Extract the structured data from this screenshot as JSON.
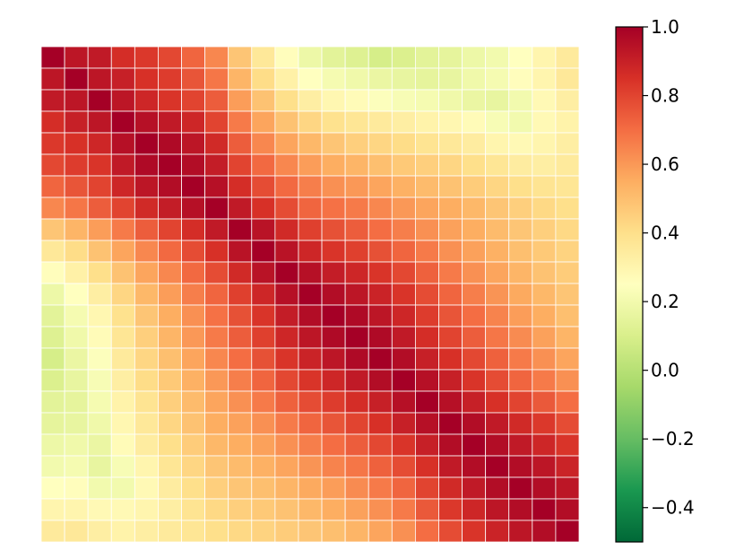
{
  "chart_data": {
    "type": "heatmap",
    "title": "",
    "xlabel": "",
    "ylabel": "",
    "x_tick_labels": [],
    "y_tick_labels": [],
    "rows": 23,
    "cols": 23,
    "cell_gridlines": true,
    "cell_gridline_color": "#ffffff",
    "colormap": "RdYlGn_r",
    "colormap_stops": [
      "#006837",
      "#1a9850",
      "#66bd63",
      "#a6d96a",
      "#d9ef8b",
      "#ffffbf",
      "#fee08b",
      "#fdae61",
      "#f46d43",
      "#d73027",
      "#a50026"
    ],
    "vmin": -0.5,
    "vmax": 1.0,
    "colorbar": {
      "placement": "right",
      "ticks": [
        {
          "value": 1.0,
          "label": "1.0"
        },
        {
          "value": 0.8,
          "label": "0.8"
        },
        {
          "value": 0.6,
          "label": "0.6"
        },
        {
          "value": 0.4,
          "label": "0.4"
        },
        {
          "value": 0.2,
          "label": "0.2"
        },
        {
          "value": 0.0,
          "label": "0.0"
        },
        {
          "value": -0.2,
          "label": "−0.2"
        },
        {
          "value": -0.4,
          "label": "−0.4"
        }
      ]
    },
    "values": [
      [
        1.0,
        0.93,
        0.92,
        0.86,
        0.83,
        0.79,
        0.72,
        0.64,
        0.48,
        0.36,
        0.26,
        0.18,
        0.14,
        0.12,
        0.09,
        0.11,
        0.14,
        0.15,
        0.18,
        0.2,
        0.25,
        0.3,
        0.35
      ],
      [
        0.93,
        1.0,
        0.93,
        0.9,
        0.85,
        0.82,
        0.76,
        0.68,
        0.53,
        0.41,
        0.32,
        0.25,
        0.21,
        0.19,
        0.17,
        0.16,
        0.15,
        0.16,
        0.19,
        0.21,
        0.26,
        0.3,
        0.36
      ],
      [
        0.92,
        0.93,
        1.0,
        0.93,
        0.88,
        0.84,
        0.8,
        0.74,
        0.59,
        0.49,
        0.4,
        0.33,
        0.29,
        0.27,
        0.24,
        0.22,
        0.21,
        0.19,
        0.17,
        0.16,
        0.2,
        0.28,
        0.33
      ],
      [
        0.86,
        0.9,
        0.93,
        1.0,
        0.95,
        0.92,
        0.88,
        0.8,
        0.67,
        0.57,
        0.49,
        0.43,
        0.39,
        0.37,
        0.35,
        0.33,
        0.31,
        0.29,
        0.27,
        0.22,
        0.2,
        0.28,
        0.31
      ],
      [
        0.83,
        0.85,
        0.88,
        0.95,
        1.0,
        0.97,
        0.93,
        0.87,
        0.74,
        0.64,
        0.57,
        0.52,
        0.48,
        0.45,
        0.43,
        0.41,
        0.38,
        0.36,
        0.34,
        0.3,
        0.28,
        0.3,
        0.33
      ],
      [
        0.79,
        0.82,
        0.84,
        0.92,
        0.97,
        1.0,
        0.96,
        0.91,
        0.8,
        0.71,
        0.64,
        0.59,
        0.55,
        0.53,
        0.5,
        0.47,
        0.45,
        0.43,
        0.4,
        0.37,
        0.34,
        0.33,
        0.35
      ],
      [
        0.72,
        0.76,
        0.8,
        0.88,
        0.93,
        0.96,
        1.0,
        0.95,
        0.86,
        0.78,
        0.71,
        0.66,
        0.62,
        0.6,
        0.57,
        0.54,
        0.51,
        0.49,
        0.46,
        0.43,
        0.4,
        0.38,
        0.37
      ],
      [
        0.64,
        0.68,
        0.74,
        0.8,
        0.87,
        0.91,
        0.95,
        1.0,
        0.92,
        0.85,
        0.78,
        0.72,
        0.69,
        0.67,
        0.64,
        0.6,
        0.57,
        0.55,
        0.52,
        0.48,
        0.45,
        0.42,
        0.4
      ],
      [
        0.48,
        0.53,
        0.59,
        0.67,
        0.74,
        0.8,
        0.86,
        0.92,
        1.0,
        0.94,
        0.87,
        0.81,
        0.77,
        0.74,
        0.7,
        0.66,
        0.62,
        0.58,
        0.55,
        0.51,
        0.48,
        0.45,
        0.42
      ],
      [
        0.36,
        0.41,
        0.49,
        0.57,
        0.64,
        0.71,
        0.78,
        0.85,
        0.94,
        1.0,
        0.94,
        0.88,
        0.84,
        0.81,
        0.77,
        0.72,
        0.67,
        0.62,
        0.58,
        0.54,
        0.5,
        0.47,
        0.44
      ],
      [
        0.26,
        0.32,
        0.4,
        0.49,
        0.57,
        0.64,
        0.71,
        0.78,
        0.87,
        0.94,
        1.0,
        0.95,
        0.91,
        0.88,
        0.84,
        0.79,
        0.73,
        0.67,
        0.62,
        0.57,
        0.53,
        0.49,
        0.46
      ],
      [
        0.18,
        0.25,
        0.33,
        0.43,
        0.52,
        0.59,
        0.66,
        0.72,
        0.81,
        0.88,
        0.95,
        1.0,
        0.96,
        0.93,
        0.89,
        0.84,
        0.78,
        0.72,
        0.66,
        0.61,
        0.56,
        0.52,
        0.48
      ],
      [
        0.14,
        0.21,
        0.29,
        0.39,
        0.48,
        0.55,
        0.62,
        0.69,
        0.77,
        0.84,
        0.91,
        0.96,
        1.0,
        0.97,
        0.93,
        0.88,
        0.82,
        0.76,
        0.7,
        0.65,
        0.59,
        0.55,
        0.5
      ],
      [
        0.12,
        0.19,
        0.27,
        0.37,
        0.45,
        0.53,
        0.6,
        0.67,
        0.74,
        0.81,
        0.88,
        0.93,
        0.97,
        1.0,
        0.97,
        0.92,
        0.86,
        0.8,
        0.74,
        0.68,
        0.63,
        0.58,
        0.53
      ],
      [
        0.09,
        0.17,
        0.24,
        0.35,
        0.43,
        0.5,
        0.57,
        0.64,
        0.7,
        0.77,
        0.84,
        0.89,
        0.93,
        0.97,
        1.0,
        0.96,
        0.9,
        0.85,
        0.79,
        0.73,
        0.67,
        0.62,
        0.57
      ],
      [
        0.11,
        0.16,
        0.22,
        0.33,
        0.41,
        0.47,
        0.54,
        0.6,
        0.66,
        0.72,
        0.79,
        0.84,
        0.88,
        0.92,
        0.96,
        1.0,
        0.95,
        0.9,
        0.84,
        0.78,
        0.72,
        0.67,
        0.62
      ],
      [
        0.14,
        0.15,
        0.21,
        0.31,
        0.38,
        0.45,
        0.51,
        0.57,
        0.62,
        0.67,
        0.73,
        0.78,
        0.82,
        0.86,
        0.9,
        0.95,
        1.0,
        0.95,
        0.9,
        0.85,
        0.8,
        0.75,
        0.7
      ],
      [
        0.15,
        0.16,
        0.19,
        0.29,
        0.36,
        0.43,
        0.49,
        0.55,
        0.58,
        0.62,
        0.67,
        0.72,
        0.76,
        0.8,
        0.85,
        0.9,
        0.95,
        1.0,
        0.96,
        0.92,
        0.87,
        0.83,
        0.78
      ],
      [
        0.18,
        0.19,
        0.17,
        0.27,
        0.34,
        0.4,
        0.46,
        0.52,
        0.55,
        0.58,
        0.62,
        0.66,
        0.7,
        0.74,
        0.79,
        0.84,
        0.9,
        0.96,
        1.0,
        0.96,
        0.92,
        0.88,
        0.84
      ],
      [
        0.2,
        0.21,
        0.16,
        0.22,
        0.3,
        0.37,
        0.43,
        0.48,
        0.51,
        0.54,
        0.57,
        0.61,
        0.65,
        0.68,
        0.73,
        0.78,
        0.85,
        0.92,
        0.96,
        1.0,
        0.96,
        0.93,
        0.89
      ],
      [
        0.25,
        0.26,
        0.2,
        0.2,
        0.28,
        0.34,
        0.4,
        0.45,
        0.48,
        0.5,
        0.53,
        0.56,
        0.59,
        0.63,
        0.67,
        0.72,
        0.8,
        0.87,
        0.92,
        0.96,
        1.0,
        0.96,
        0.93
      ],
      [
        0.3,
        0.3,
        0.28,
        0.28,
        0.3,
        0.33,
        0.38,
        0.42,
        0.45,
        0.47,
        0.49,
        0.52,
        0.55,
        0.58,
        0.62,
        0.67,
        0.75,
        0.83,
        0.88,
        0.93,
        0.96,
        1.0,
        0.96
      ],
      [
        0.35,
        0.36,
        0.33,
        0.31,
        0.33,
        0.35,
        0.37,
        0.4,
        0.42,
        0.44,
        0.46,
        0.48,
        0.5,
        0.53,
        0.57,
        0.62,
        0.7,
        0.78,
        0.84,
        0.89,
        0.93,
        0.96,
        1.0
      ]
    ]
  }
}
